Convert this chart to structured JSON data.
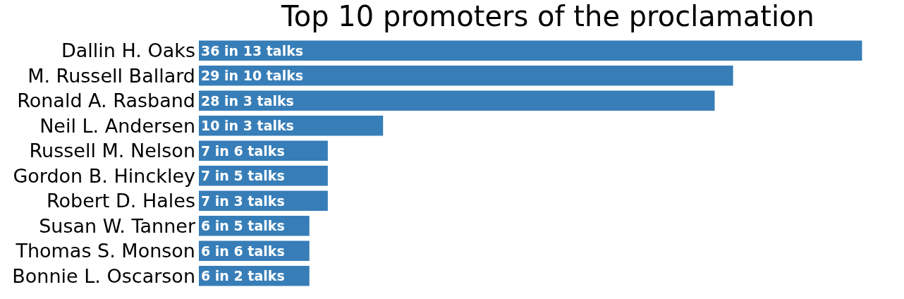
{
  "chart_data": {
    "type": "bar",
    "title": "Top 10 promoters of the proclamation",
    "orientation": "horizontal",
    "categories": [
      "Dallin H. Oaks",
      "M. Russell Ballard",
      "Ronald A. Rasband",
      "Neil L. Andersen",
      "Russell M. Nelson",
      "Gordon B. Hinckley",
      "Robert D. Hales",
      "Susan W. Tanner",
      "Thomas S. Monson",
      "Bonnie L. Oscarson"
    ],
    "values": [
      36,
      29,
      28,
      10,
      7,
      7,
      7,
      6,
      6,
      6
    ],
    "value_labels": [
      "36 in 13 talks",
      "29 in 10 talks",
      "28 in 3 talks",
      "10 in 3 talks",
      "7 in 6 talks",
      "7 in 5 talks",
      "7 in 3 talks",
      "6 in 5 talks",
      "6 in 6 talks",
      "6 in 2 talks"
    ],
    "color": "#377eb8",
    "tick_labels": "y"
  }
}
